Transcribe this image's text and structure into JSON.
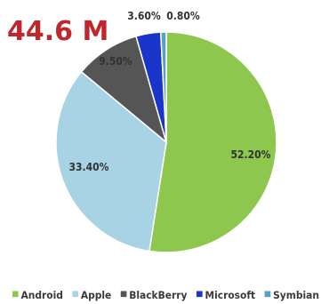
{
  "headline": {
    "text": "44.6 M",
    "color": "#c0272d"
  },
  "chart_data": {
    "type": "pie",
    "title": "",
    "legend_position": "bottom",
    "slices": [
      {
        "name": "Android",
        "value": 52.2,
        "label": "52.20%",
        "color": "#8dc74e"
      },
      {
        "name": "Apple",
        "value": 33.4,
        "label": "33.40%",
        "color": "#a7d3e5"
      },
      {
        "name": "BlackBerry",
        "value": 9.5,
        "label": "9.50%",
        "color": "#555555"
      },
      {
        "name": "Microsoft",
        "value": 3.6,
        "label": "3.60%",
        "color": "#1a35c9"
      },
      {
        "name": "Symbian",
        "value": 0.8,
        "label": "0.80%",
        "color": "#5aa0c2"
      }
    ]
  }
}
